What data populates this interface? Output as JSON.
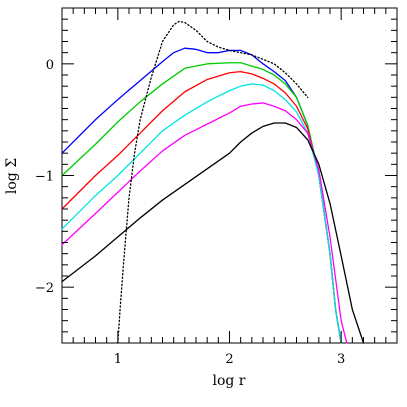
{
  "chart_data": {
    "type": "line",
    "xlabel": "log r",
    "ylabel": "log Σ",
    "xlim": [
      0.5,
      3.5
    ],
    "ylim": [
      -2.5,
      0.5
    ],
    "x_ticks": [
      1,
      2,
      3
    ],
    "y_ticks": [
      -2,
      -1,
      0
    ],
    "x_tick_labels": [
      "1",
      "2",
      "3"
    ],
    "y_tick_labels": [
      "−2",
      "−1",
      "0"
    ],
    "grid": false,
    "series": [
      {
        "color": "#0000ff",
        "style": "solid",
        "x": [
          0.5,
          0.8,
          1.0,
          1.2,
          1.4,
          1.5,
          1.6,
          1.7,
          1.8,
          1.9,
          2.0,
          2.1,
          2.2,
          2.3,
          2.4,
          2.5,
          2.6,
          2.7,
          2.8,
          2.9,
          2.95,
          3.0
        ],
        "y": [
          -0.8,
          -0.5,
          -0.32,
          -0.15,
          0.02,
          0.1,
          0.14,
          0.13,
          0.1,
          0.1,
          0.12,
          0.12,
          0.08,
          0.0,
          -0.07,
          -0.15,
          -0.3,
          -0.55,
          -1.0,
          -1.7,
          -2.2,
          -2.5
        ]
      },
      {
        "color": "#00cc00",
        "style": "solid",
        "x": [
          0.5,
          0.8,
          1.0,
          1.2,
          1.4,
          1.6,
          1.8,
          2.0,
          2.1,
          2.2,
          2.3,
          2.4,
          2.5,
          2.6,
          2.7,
          2.8,
          2.9,
          2.95,
          3.0
        ],
        "y": [
          -1.0,
          -0.72,
          -0.52,
          -0.34,
          -0.18,
          -0.04,
          0.0,
          0.01,
          0.01,
          -0.02,
          -0.05,
          -0.1,
          -0.18,
          -0.3,
          -0.55,
          -0.98,
          -1.7,
          -2.2,
          -2.5
        ]
      },
      {
        "color": "#ff0000",
        "style": "solid",
        "x": [
          0.5,
          0.8,
          1.0,
          1.2,
          1.4,
          1.6,
          1.8,
          2.0,
          2.1,
          2.2,
          2.3,
          2.4,
          2.5,
          2.6,
          2.7,
          2.8,
          2.9,
          2.95,
          3.0
        ],
        "y": [
          -1.3,
          -1.0,
          -0.82,
          -0.62,
          -0.42,
          -0.25,
          -0.14,
          -0.08,
          -0.07,
          -0.09,
          -0.13,
          -0.18,
          -0.26,
          -0.38,
          -0.58,
          -1.0,
          -1.7,
          -2.2,
          -2.5
        ]
      },
      {
        "color": "#00e5e5",
        "style": "solid",
        "x": [
          0.5,
          0.8,
          1.0,
          1.2,
          1.4,
          1.6,
          1.8,
          2.0,
          2.1,
          2.2,
          2.3,
          2.4,
          2.5,
          2.6,
          2.7,
          2.8,
          2.9,
          2.95,
          3.0
        ],
        "y": [
          -1.48,
          -1.18,
          -1.0,
          -0.8,
          -0.6,
          -0.46,
          -0.34,
          -0.24,
          -0.2,
          -0.18,
          -0.19,
          -0.24,
          -0.32,
          -0.43,
          -0.62,
          -1.0,
          -1.7,
          -2.2,
          -2.5
        ]
      },
      {
        "color": "#ff00ff",
        "style": "solid",
        "x": [
          0.5,
          0.8,
          1.0,
          1.2,
          1.4,
          1.6,
          1.8,
          2.0,
          2.1,
          2.2,
          2.3,
          2.4,
          2.5,
          2.6,
          2.7,
          2.8,
          2.9,
          3.0,
          3.05
        ],
        "y": [
          -1.62,
          -1.34,
          -1.15,
          -0.96,
          -0.78,
          -0.64,
          -0.54,
          -0.44,
          -0.38,
          -0.36,
          -0.35,
          -0.38,
          -0.42,
          -0.5,
          -0.62,
          -0.95,
          -1.55,
          -2.3,
          -2.5
        ]
      },
      {
        "color": "#000000",
        "style": "solid",
        "x": [
          0.5,
          0.8,
          1.0,
          1.2,
          1.4,
          1.6,
          1.8,
          2.0,
          2.1,
          2.2,
          2.3,
          2.4,
          2.5,
          2.6,
          2.7,
          2.8,
          2.9,
          3.0,
          3.1,
          3.2
        ],
        "y": [
          -1.95,
          -1.72,
          -1.55,
          -1.38,
          -1.22,
          -1.08,
          -0.94,
          -0.8,
          -0.7,
          -0.62,
          -0.56,
          -0.53,
          -0.53,
          -0.57,
          -0.68,
          -0.9,
          -1.25,
          -1.72,
          -2.2,
          -2.5
        ]
      },
      {
        "color": "#000000",
        "style": "dotted",
        "x": [
          1.0,
          1.02,
          1.05,
          1.1,
          1.15,
          1.2,
          1.3,
          1.4,
          1.5,
          1.55,
          1.6,
          1.7,
          1.8,
          1.9,
          2.0,
          2.1,
          2.2,
          2.3,
          2.4,
          2.5,
          2.6,
          2.7
        ],
        "y": [
          -2.5,
          -2.2,
          -1.8,
          -1.2,
          -0.8,
          -0.5,
          -0.12,
          0.2,
          0.35,
          0.38,
          0.37,
          0.3,
          0.2,
          0.15,
          0.12,
          0.1,
          0.08,
          0.04,
          0.0,
          -0.08,
          -0.18,
          -0.3
        ]
      }
    ]
  }
}
